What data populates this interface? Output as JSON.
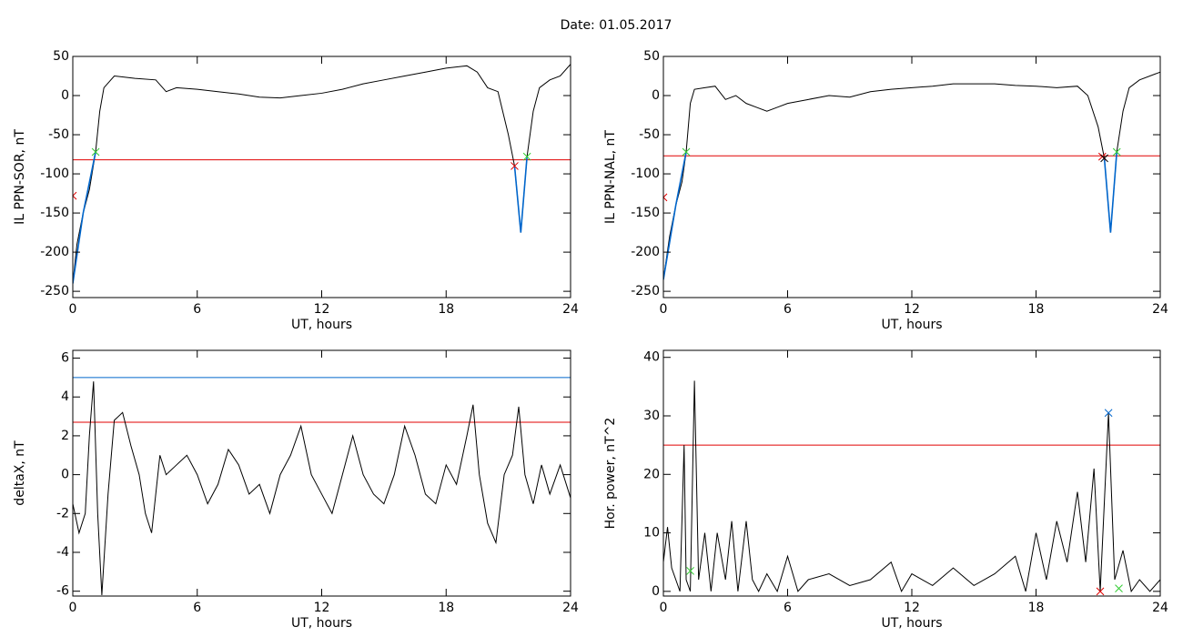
{
  "title": "Date:  01.05.2017",
  "chart_data": [
    {
      "type": "line",
      "ylabel": "IL PPN-SOR, nT",
      "xlabel": "UT, hours",
      "xlim": [
        0,
        24
      ],
      "xticks": [
        0,
        6,
        12,
        18,
        24
      ],
      "ylim": [
        -258,
        50
      ],
      "yticks": [
        -250,
        -200,
        -150,
        -100,
        -50,
        0,
        50
      ],
      "hlines": [
        {
          "value": -82,
          "color": "#e00000"
        }
      ],
      "series": [
        {
          "color": "#000000",
          "x": [
            0,
            0.2,
            0.5,
            0.8,
            1.1,
            1.3,
            1.5,
            2,
            3,
            4,
            4.5,
            5,
            6,
            7,
            8,
            9,
            10,
            11,
            12,
            13,
            14,
            15,
            16,
            17,
            18,
            19,
            19.5,
            20,
            20.5,
            21,
            21.3,
            21.6,
            21.9,
            22.2,
            22.5,
            23,
            23.5,
            24
          ],
          "values": [
            -240,
            -190,
            -150,
            -120,
            -72,
            -20,
            10,
            25,
            22,
            20,
            5,
            10,
            8,
            5,
            2,
            -2,
            -3,
            0,
            3,
            8,
            15,
            20,
            25,
            30,
            35,
            38,
            30,
            10,
            5,
            -50,
            -90,
            -175,
            -78,
            -20,
            10,
            20,
            25,
            40
          ]
        },
        {
          "color": "#0066cc",
          "x": [
            0,
            0.5,
            1.1
          ],
          "values": [
            -240,
            -150,
            -72
          ]
        },
        {
          "color": "#0066cc",
          "x": [
            21.3,
            21.6,
            21.9
          ],
          "values": [
            -90,
            -175,
            -78
          ]
        },
        {
          "type": "markers",
          "color": "#33cc33",
          "x": [
            1.1,
            21.9
          ],
          "values": [
            -72,
            -78
          ]
        },
        {
          "type": "markers",
          "color": "#e00000",
          "x": [
            0,
            21.3
          ],
          "values": [
            -128,
            -90
          ]
        }
      ]
    },
    {
      "type": "line",
      "ylabel": "IL PPN-NAL, nT",
      "xlabel": "UT, hours",
      "xlim": [
        0,
        24
      ],
      "xticks": [
        0,
        6,
        12,
        18,
        24
      ],
      "ylim": [
        -258,
        50
      ],
      "yticks": [
        -250,
        -200,
        -150,
        -100,
        -50,
        0,
        50
      ],
      "hlines": [
        {
          "value": -77,
          "color": "#e00000"
        }
      ],
      "series": [
        {
          "color": "#000000",
          "x": [
            0,
            0.3,
            0.6,
            0.9,
            1.1,
            1.3,
            1.5,
            2,
            2.5,
            3,
            3.5,
            4,
            4.5,
            5,
            5.5,
            6,
            7,
            8,
            9,
            10,
            11,
            12,
            13,
            14,
            15,
            16,
            17,
            18,
            19,
            20,
            20.5,
            21,
            21.3,
            21.6,
            21.9,
            22.2,
            22.5,
            23,
            24
          ],
          "values": [
            -235,
            -180,
            -140,
            -110,
            -72,
            -10,
            8,
            10,
            12,
            -5,
            0,
            -10,
            -15,
            -20,
            -15,
            -10,
            -5,
            0,
            -2,
            5,
            8,
            10,
            12,
            15,
            15,
            15,
            13,
            12,
            10,
            12,
            0,
            -40,
            -80,
            -175,
            -72,
            -20,
            10,
            20,
            30
          ]
        },
        {
          "color": "#0066cc",
          "x": [
            0,
            0.6,
            1.1
          ],
          "values": [
            -235,
            -140,
            -72
          ]
        },
        {
          "color": "#0066cc",
          "x": [
            21.3,
            21.6,
            21.9
          ],
          "values": [
            -80,
            -175,
            -72
          ]
        },
        {
          "type": "markers",
          "color": "#33cc33",
          "x": [
            1.1,
            21.9
          ],
          "values": [
            -72,
            -72
          ]
        },
        {
          "type": "markers",
          "color": "#e00000",
          "x": [
            0,
            21.2
          ],
          "values": [
            -130,
            -78
          ]
        },
        {
          "type": "markers",
          "color": "#000000",
          "x": [
            21.3
          ],
          "values": [
            -80
          ]
        }
      ]
    },
    {
      "type": "line",
      "ylabel": "deltaX, nT",
      "xlabel": "UT, hours",
      "xlim": [
        0,
        24
      ],
      "xticks": [
        0,
        6,
        12,
        18,
        24
      ],
      "ylim": [
        -6.25,
        6.4
      ],
      "yticks": [
        -6,
        -4,
        -2,
        0,
        2,
        4,
        6
      ],
      "hlines": [
        {
          "value": 2.7,
          "color": "#e00000"
        },
        {
          "value": 5.0,
          "color": "#0066cc"
        }
      ],
      "series": [
        {
          "color": "#000000",
          "x": [
            0,
            0.3,
            0.6,
            0.8,
            1,
            1.2,
            1.4,
            1.7,
            2,
            2.4,
            2.8,
            3.2,
            3.5,
            3.8,
            4.2,
            4.5,
            5,
            5.5,
            6,
            6.5,
            7,
            7.5,
            8,
            8.5,
            9,
            9.5,
            10,
            10.5,
            11,
            11.5,
            12,
            12.5,
            13,
            13.5,
            14,
            14.5,
            15,
            15.5,
            16,
            16.5,
            17,
            17.5,
            18,
            18.5,
            19,
            19.3,
            19.6,
            20,
            20.4,
            20.8,
            21.2,
            21.5,
            21.8,
            22.2,
            22.6,
            23,
            23.5,
            24
          ],
          "values": [
            -1.5,
            -3,
            -2,
            2,
            4.8,
            -2,
            -6.2,
            -1,
            2.8,
            3.2,
            1.5,
            0,
            -2,
            -3,
            1,
            0,
            0.5,
            1,
            0,
            -1.5,
            -0.5,
            1.3,
            0.5,
            -1,
            -0.5,
            -2,
            0,
            1,
            2.5,
            0,
            -1,
            -2,
            0,
            2,
            0,
            -1,
            -1.5,
            0,
            2.5,
            1,
            -1,
            -1.5,
            0.5,
            -0.5,
            2,
            3.6,
            0,
            -2.5,
            -3.5,
            0,
            1,
            3.5,
            0,
            -1.5,
            0.5,
            -1,
            0.5,
            -1.2
          ]
        }
      ]
    },
    {
      "type": "line",
      "ylabel": "Hor. power, nT^2",
      "xlabel": "UT, hours",
      "xlim": [
        0,
        24
      ],
      "xticks": [
        0,
        6,
        12,
        18,
        24
      ],
      "ylim": [
        -0.8,
        41.2
      ],
      "yticks": [
        0,
        10,
        20,
        30,
        40
      ],
      "hlines": [
        {
          "value": 25,
          "color": "#e00000"
        }
      ],
      "series": [
        {
          "color": "#000000",
          "x": [
            0,
            0.2,
            0.4,
            0.6,
            0.8,
            1,
            1.1,
            1.3,
            1.5,
            1.7,
            2,
            2.3,
            2.6,
            3,
            3.3,
            3.6,
            4,
            4.3,
            4.6,
            5,
            5.5,
            6,
            6.5,
            7,
            8,
            9,
            10,
            11,
            11.5,
            12,
            13,
            14,
            15,
            16,
            17,
            17.5,
            18,
            18.5,
            19,
            19.5,
            20,
            20.4,
            20.8,
            21.1,
            21.5,
            21.8,
            22.2,
            22.6,
            23,
            23.5,
            24
          ],
          "values": [
            5,
            11,
            4,
            2,
            0,
            25,
            2,
            0,
            36,
            2,
            10,
            0,
            10,
            2,
            12,
            0,
            12,
            2,
            0,
            3,
            0,
            6,
            0,
            2,
            3,
            1,
            2,
            5,
            0,
            3,
            1,
            4,
            1,
            3,
            6,
            0,
            10,
            2,
            12,
            5,
            17,
            5,
            21,
            0,
            30.5,
            2,
            7,
            0,
            2,
            0,
            2
          ]
        },
        {
          "type": "markers",
          "color": "#0066cc",
          "x": [
            21.5
          ],
          "values": [
            30.5
          ]
        },
        {
          "type": "markers",
          "color": "#33cc33",
          "x": [
            1.3,
            22
          ],
          "values": [
            3.5,
            0.5
          ]
        },
        {
          "type": "markers",
          "color": "#e00000",
          "x": [
            21.1
          ],
          "values": [
            0
          ]
        }
      ]
    }
  ]
}
